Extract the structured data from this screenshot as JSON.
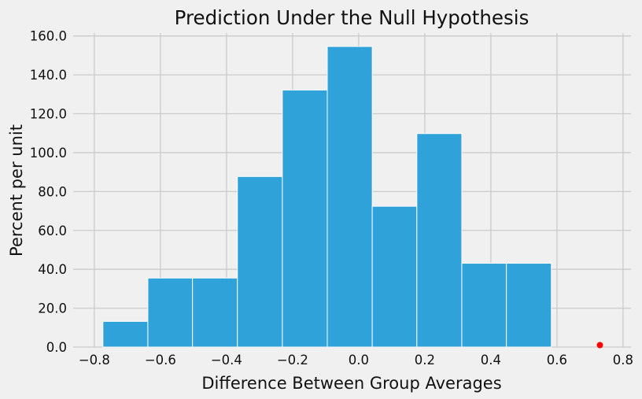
{
  "chart_data": {
    "type": "bar",
    "subtype": "histogram",
    "title": "Prediction Under the Null Hypothesis",
    "xlabel": "Difference Between Group Averages",
    "ylabel": "Percent per unit",
    "bin_edges": [
      -0.774,
      -0.638,
      -0.503,
      -0.367,
      -0.231,
      -0.095,
      0.041,
      0.176,
      0.312,
      0.447,
      0.583
    ],
    "values": [
      13.2,
      35.5,
      35.5,
      87.7,
      132.2,
      154.6,
      72.4,
      109.8,
      43.1,
      43.1
    ],
    "x_ticks": [
      -0.8,
      -0.6,
      -0.4,
      -0.2,
      0.0,
      0.2,
      0.4,
      0.6,
      0.8
    ],
    "x_tick_labels": [
      "−0.8",
      "−0.6",
      "−0.4",
      "−0.2",
      "0.0",
      "0.2",
      "0.4",
      "0.6",
      "0.8"
    ],
    "y_ticks": [
      0,
      20,
      40,
      60,
      80,
      100,
      120,
      140,
      160
    ],
    "y_tick_labels": [
      "0.0",
      "20.0",
      "40.0",
      "60.0",
      "80.0",
      "100.0",
      "120.0",
      "140.0",
      "160.0"
    ],
    "xlim": [
      -0.864,
      0.824
    ],
    "ylim": [
      0,
      161.5
    ],
    "grid": true,
    "legend": "none",
    "bar_color": "#30a2da",
    "bar_edge_color": "#fcfcfc",
    "grid_color": "#cbcbcb",
    "background_color": "#f0f0f0",
    "scatter_point": {
      "x": 0.73,
      "y": 0,
      "color": "#ff0000"
    }
  }
}
